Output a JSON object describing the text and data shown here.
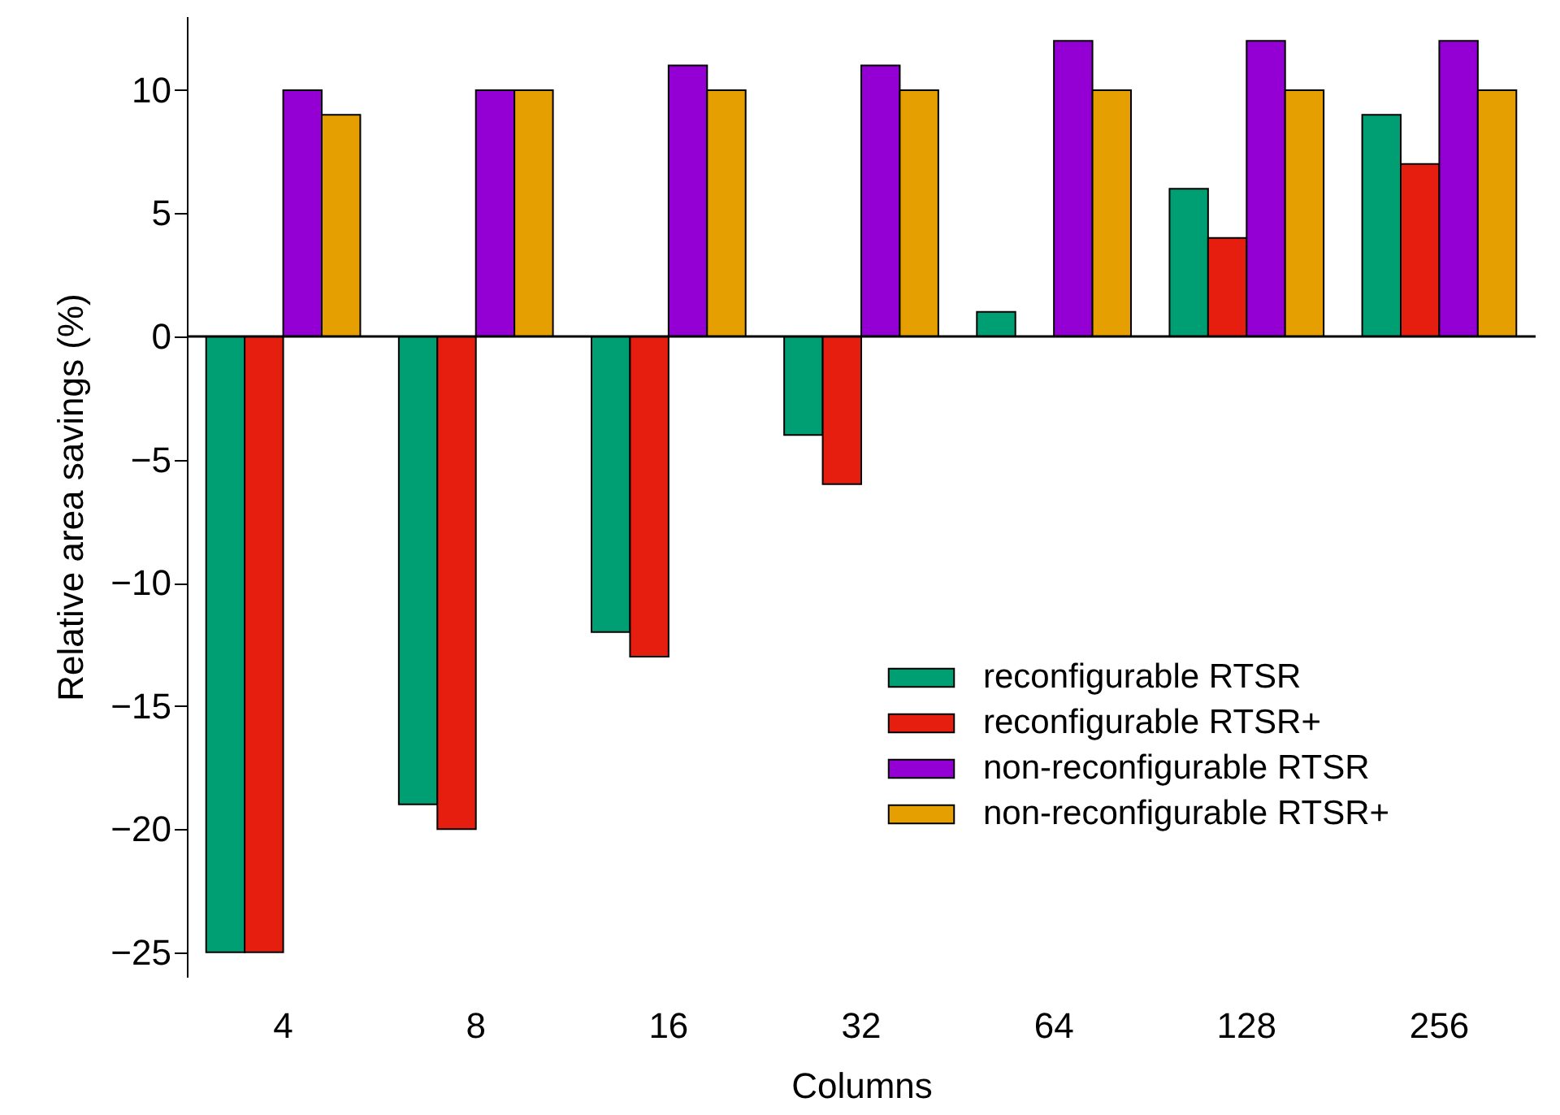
{
  "chart_data": {
    "type": "bar",
    "xlabel": "Columns",
    "ylabel": "Relative area savings (%)",
    "categories": [
      "4",
      "8",
      "16",
      "32",
      "64",
      "128",
      "256"
    ],
    "series": [
      {
        "name": "reconfigurable RTSR",
        "color": "#009e73",
        "values": [
          -25,
          -19,
          -12,
          -4,
          1,
          6,
          9
        ]
      },
      {
        "name": "reconfigurable RTSR+",
        "color": "#e51e10",
        "values": [
          -25,
          -20,
          -13,
          -6,
          null,
          4,
          7
        ]
      },
      {
        "name": "non-reconfigurable RTSR",
        "color": "#9400d3",
        "values": [
          10,
          10,
          11,
          11,
          12,
          12,
          12
        ]
      },
      {
        "name": "non-reconfigurable RTSR+",
        "color": "#e69f00",
        "values": [
          9,
          10,
          10,
          10,
          10,
          10,
          10
        ]
      }
    ],
    "ylim": [
      -26,
      13
    ],
    "yticks": [
      -25,
      -20,
      -15,
      -10,
      -5,
      0,
      5,
      10
    ],
    "ref_lines": [
      {
        "axis": "y",
        "value": 0
      }
    ],
    "legend": "bottom right",
    "grid": false
  }
}
